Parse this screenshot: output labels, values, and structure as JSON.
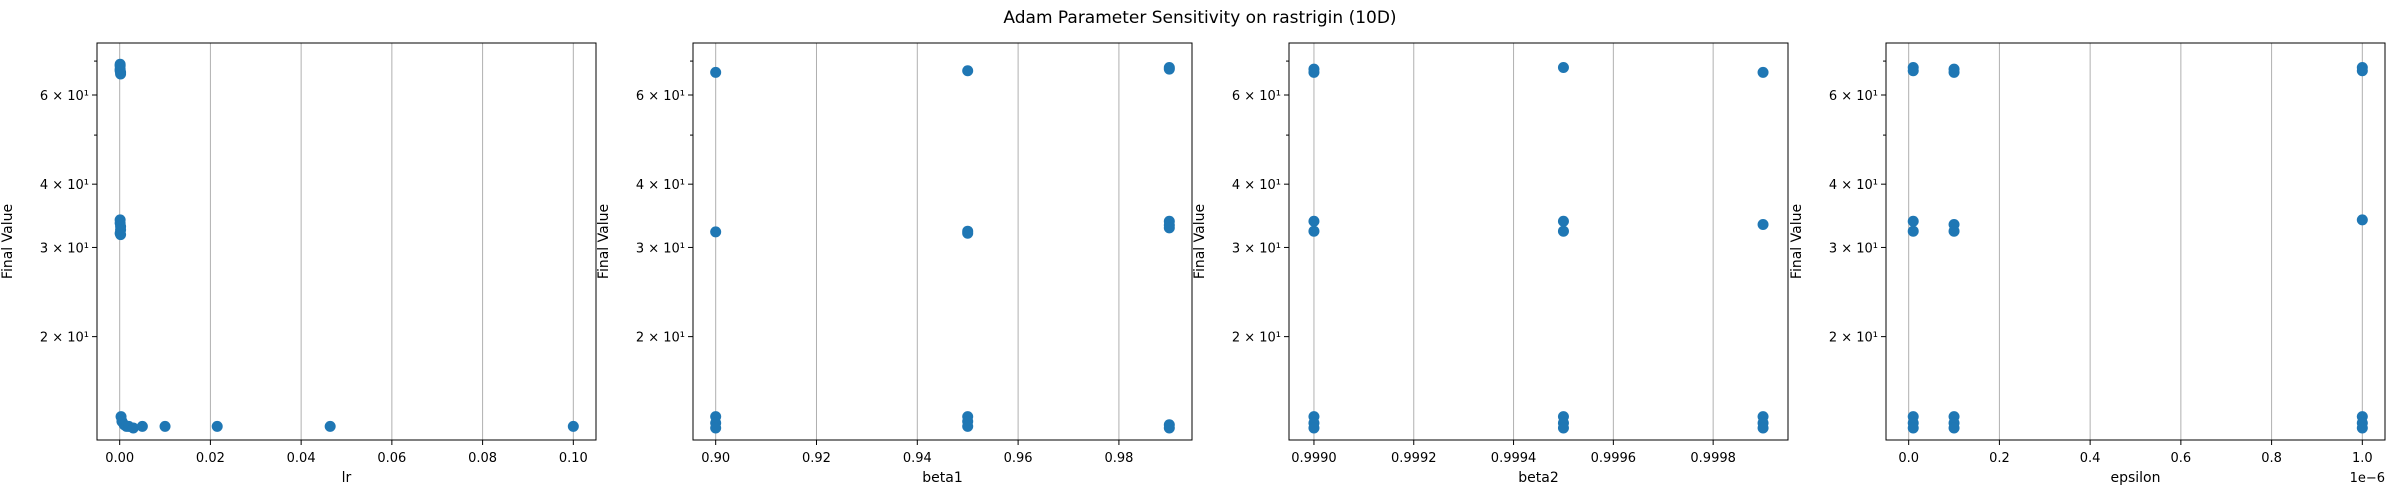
{
  "figure": {
    "title": "Adam Parameter Sensitivity on rastrigin (10D)"
  },
  "style": {
    "point_color": "#1f77b4",
    "grid_color": "#b0b0b0",
    "axis_color": "#000000"
  },
  "chart_data": [
    {
      "type": "scatter",
      "title": "",
      "xlabel": "lr",
      "ylabel": "Final Value",
      "xscale": "linear",
      "yscale": "log",
      "xlim": [
        -0.005,
        0.105
      ],
      "ylim": [
        12.5,
        76
      ],
      "xticks": [
        0.0,
        0.02,
        0.04,
        0.06,
        0.08,
        0.1
      ],
      "xtick_labels": [
        "0.00",
        "0.02",
        "0.04",
        "0.06",
        "0.08",
        "0.10"
      ],
      "yticks": [
        20,
        30,
        40,
        60
      ],
      "ytick_labels": [
        "2 × 10¹",
        "3 × 10¹",
        "4 × 10¹",
        "6 × 10¹"
      ],
      "grid": "x",
      "x_offset_label": "",
      "points": [
        {
          "x": 0.0001,
          "y": 68.5
        },
        {
          "x": 0.0001,
          "y": 67.5
        },
        {
          "x": 0.0001,
          "y": 67.0
        },
        {
          "x": 0.0002,
          "y": 66.5
        },
        {
          "x": 0.0002,
          "y": 66.0
        },
        {
          "x": 0.0001,
          "y": 69.0
        },
        {
          "x": 0.0001,
          "y": 34.0
        },
        {
          "x": 0.0001,
          "y": 33.5
        },
        {
          "x": 0.0002,
          "y": 33.0
        },
        {
          "x": 0.0002,
          "y": 32.5
        },
        {
          "x": 0.0001,
          "y": 32.0
        },
        {
          "x": 0.0002,
          "y": 31.8
        },
        {
          "x": 0.0003,
          "y": 13.9
        },
        {
          "x": 0.0005,
          "y": 13.6
        },
        {
          "x": 0.001,
          "y": 13.4
        },
        {
          "x": 0.0015,
          "y": 13.3
        },
        {
          "x": 0.002,
          "y": 13.3
        },
        {
          "x": 0.003,
          "y": 13.2
        },
        {
          "x": 0.005,
          "y": 13.3
        },
        {
          "x": 0.01,
          "y": 13.3
        },
        {
          "x": 0.0215,
          "y": 13.3
        },
        {
          "x": 0.0464,
          "y": 13.3
        },
        {
          "x": 0.1,
          "y": 13.3
        }
      ]
    },
    {
      "type": "scatter",
      "title": "",
      "xlabel": "beta1",
      "ylabel": "Final Value",
      "xscale": "linear",
      "yscale": "log",
      "xlim": [
        0.8955,
        0.9945
      ],
      "ylim": [
        12.5,
        76
      ],
      "xticks": [
        0.9,
        0.92,
        0.94,
        0.96,
        0.98
      ],
      "xtick_labels": [
        "0.90",
        "0.92",
        "0.94",
        "0.96",
        "0.98"
      ],
      "yticks": [
        20,
        30,
        40,
        60
      ],
      "ytick_labels": [
        "2 × 10¹",
        "3 × 10¹",
        "4 × 10¹",
        "6 × 10¹"
      ],
      "grid": "x",
      "x_offset_label": "",
      "points": [
        {
          "x": 0.9,
          "y": 66.5
        },
        {
          "x": 0.9,
          "y": 32.2
        },
        {
          "x": 0.9,
          "y": 13.9
        },
        {
          "x": 0.9,
          "y": 13.5
        },
        {
          "x": 0.9,
          "y": 13.2
        },
        {
          "x": 0.95,
          "y": 67.0
        },
        {
          "x": 0.95,
          "y": 32.3
        },
        {
          "x": 0.95,
          "y": 32.0
        },
        {
          "x": 0.95,
          "y": 13.9
        },
        {
          "x": 0.95,
          "y": 13.6
        },
        {
          "x": 0.95,
          "y": 13.3
        },
        {
          "x": 0.99,
          "y": 68.0
        },
        {
          "x": 0.99,
          "y": 67.5
        },
        {
          "x": 0.99,
          "y": 33.8
        },
        {
          "x": 0.99,
          "y": 33.2
        },
        {
          "x": 0.99,
          "y": 32.8
        },
        {
          "x": 0.99,
          "y": 13.4
        },
        {
          "x": 0.99,
          "y": 13.2
        }
      ]
    },
    {
      "type": "scatter",
      "title": "",
      "xlabel": "beta2",
      "ylabel": "Final Value",
      "xscale": "linear",
      "yscale": "log",
      "xlim": [
        0.99895,
        0.99995
      ],
      "ylim": [
        12.5,
        76
      ],
      "xticks": [
        0.999,
        0.9992,
        0.9994,
        0.9996,
        0.9998
      ],
      "xtick_labels": [
        "0.9990",
        "0.9992",
        "0.9994",
        "0.9996",
        "0.9998"
      ],
      "yticks": [
        20,
        30,
        40,
        60
      ],
      "ytick_labels": [
        "2 × 10¹",
        "3 × 10¹",
        "4 × 10¹",
        "6 × 10¹"
      ],
      "grid": "x",
      "x_offset_label": "",
      "points": [
        {
          "x": 0.999,
          "y": 67.5
        },
        {
          "x": 0.999,
          "y": 66.5
        },
        {
          "x": 0.999,
          "y": 33.8
        },
        {
          "x": 0.999,
          "y": 32.3
        },
        {
          "x": 0.999,
          "y": 13.9
        },
        {
          "x": 0.999,
          "y": 13.5
        },
        {
          "x": 0.999,
          "y": 13.2
        },
        {
          "x": 0.9995,
          "y": 68.0
        },
        {
          "x": 0.9995,
          "y": 33.8
        },
        {
          "x": 0.9995,
          "y": 32.3
        },
        {
          "x": 0.9995,
          "y": 13.9
        },
        {
          "x": 0.9995,
          "y": 13.5
        },
        {
          "x": 0.9995,
          "y": 13.2
        },
        {
          "x": 0.9999,
          "y": 66.5
        },
        {
          "x": 0.9999,
          "y": 33.3
        },
        {
          "x": 0.9999,
          "y": 13.9
        },
        {
          "x": 0.9999,
          "y": 13.5
        },
        {
          "x": 0.9999,
          "y": 13.2
        }
      ]
    },
    {
      "type": "scatter",
      "title": "",
      "xlabel": "epsilon",
      "ylabel": "Final Value",
      "xscale": "linear",
      "yscale": "log",
      "xlim": [
        -5e-08,
        1.05e-06
      ],
      "ylim": [
        12.5,
        76
      ],
      "xticks": [
        0.0,
        2e-07,
        4e-07,
        6e-07,
        8e-07,
        1e-06
      ],
      "xtick_labels": [
        "0.0",
        "0.2",
        "0.4",
        "0.6",
        "0.8",
        "1.0"
      ],
      "yticks": [
        20,
        30,
        40,
        60
      ],
      "ytick_labels": [
        "2 × 10¹",
        "3 × 10¹",
        "4 × 10¹",
        "6 × 10¹"
      ],
      "grid": "x",
      "x_offset_label": "1e−6",
      "points": [
        {
          "x": 1e-08,
          "y": 68.0
        },
        {
          "x": 1e-08,
          "y": 67.0
        },
        {
          "x": 1e-08,
          "y": 33.8
        },
        {
          "x": 1e-08,
          "y": 32.3
        },
        {
          "x": 1e-08,
          "y": 13.9
        },
        {
          "x": 1e-08,
          "y": 13.5
        },
        {
          "x": 1e-08,
          "y": 13.2
        },
        {
          "x": 1e-07,
          "y": 67.5
        },
        {
          "x": 1e-07,
          "y": 66.5
        },
        {
          "x": 1e-07,
          "y": 33.3
        },
        {
          "x": 1e-07,
          "y": 32.3
        },
        {
          "x": 1e-07,
          "y": 13.9
        },
        {
          "x": 1e-07,
          "y": 13.5
        },
        {
          "x": 1e-07,
          "y": 13.2
        },
        {
          "x": 1e-06,
          "y": 68.0
        },
        {
          "x": 1e-06,
          "y": 67.0
        },
        {
          "x": 1e-06,
          "y": 34.0
        },
        {
          "x": 1e-06,
          "y": 13.9
        },
        {
          "x": 1e-06,
          "y": 13.5
        },
        {
          "x": 1e-06,
          "y": 13.2
        }
      ]
    }
  ]
}
